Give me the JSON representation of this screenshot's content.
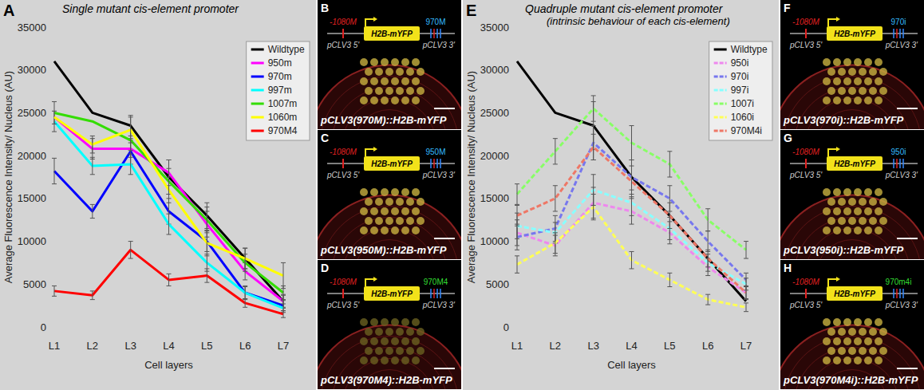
{
  "chart_data": [
    {
      "type": "line",
      "panel_label": "A",
      "title": "Single mutant cis-element promoter",
      "categories": [
        "L1",
        "L2",
        "L3",
        "L4",
        "L5",
        "L6",
        "L7"
      ],
      "x_label": "Cell layers",
      "y_label": "Average Fluorescence Intensity/ Nucleus (AU)",
      "ylim": [
        0,
        35000
      ],
      "yticks": [
        0,
        5000,
        10000,
        15000,
        20000,
        25000,
        30000,
        35000
      ],
      "legend": "upper right",
      "series": [
        {
          "name": "Wildtype",
          "color": "#000000",
          "line_style": "solid",
          "values": [
            31000,
            25000,
            23500,
            17500,
            13000,
            8000,
            3000
          ],
          "errors": [
            null,
            null,
            1200,
            2000,
            1500,
            1200,
            800
          ]
        },
        {
          "name": "950m",
          "color": "#ff00ff",
          "line_style": "solid",
          "values": [
            24500,
            20800,
            20800,
            18000,
            12000,
            6500,
            3000
          ],
          "errors": [
            null,
            1200,
            1000,
            1500,
            1500,
            1000,
            700
          ]
        },
        {
          "name": "970m",
          "color": "#0000ff",
          "line_style": "solid",
          "values": [
            18200,
            13500,
            20500,
            13500,
            10000,
            4000,
            2500
          ],
          "errors": [
            1500,
            800,
            1500,
            1500,
            1200,
            800,
            600
          ]
        },
        {
          "name": "997m",
          "color": "#00ffff",
          "line_style": "solid",
          "values": [
            24000,
            18800,
            19000,
            12000,
            7500,
            4000,
            2200
          ],
          "errors": [
            1200,
            1000,
            1200,
            1200,
            1000,
            700,
            500
          ]
        },
        {
          "name": "1007m",
          "color": "#33dd00",
          "line_style": "solid",
          "values": [
            25000,
            24000,
            21800,
            17000,
            12500,
            7500,
            4000
          ],
          "errors": [
            1300,
            null,
            1200,
            1500,
            1500,
            1000,
            800
          ]
        },
        {
          "name": "1060m",
          "color": "#ffff00",
          "line_style": "solid",
          "values": [
            24500,
            21300,
            23000,
            16000,
            9800,
            8000,
            6000
          ],
          "errors": [
            null,
            1000,
            1500,
            1500,
            1500,
            1200,
            1500
          ]
        },
        {
          "name": "970M4",
          "color": "#ff0000",
          "line_style": "solid",
          "values": [
            4200,
            3700,
            9000,
            5500,
            6000,
            2800,
            1500
          ],
          "errors": [
            600,
            500,
            1000,
            700,
            800,
            500,
            400
          ]
        }
      ]
    },
    {
      "type": "line",
      "panel_label": "E",
      "title": "Quadruple mutant cis-element promoter",
      "subtitle": "(intrinsic behaviour of each cis-element)",
      "categories": [
        "L1",
        "L2",
        "L3",
        "L4",
        "L5",
        "L6",
        "L7"
      ],
      "x_label": "Cell layers",
      "y_label": "Average Fluorescence Intensity/ Nucleus (AU)",
      "ylim": [
        0,
        35000
      ],
      "yticks": [
        0,
        5000,
        10000,
        15000,
        20000,
        25000,
        30000,
        35000
      ],
      "legend": "upper right",
      "series": [
        {
          "name": "Wildtype",
          "color": "#000000",
          "line_style": "solid",
          "values": [
            31000,
            25000,
            23500,
            17500,
            13000,
            8000,
            3000
          ],
          "errors": [
            null,
            null,
            2800,
            null,
            null,
            null,
            null
          ]
        },
        {
          "name": "950i",
          "color": "#ee88ee",
          "line_style": "dashed",
          "values": [
            11000,
            9500,
            14500,
            13500,
            11000,
            7000,
            4000
          ],
          "errors": [
            1500,
            1200,
            1800,
            1500,
            1300,
            1000,
            700
          ]
        },
        {
          "name": "970i",
          "color": "#7777ee",
          "line_style": "dashed",
          "values": [
            10500,
            11500,
            21500,
            17500,
            15000,
            10000,
            5500
          ],
          "errors": [
            1500,
            1500,
            2000,
            2000,
            1500,
            1200,
            800
          ]
        },
        {
          "name": "997i",
          "color": "#88ffff",
          "line_style": "dashed",
          "values": [
            11800,
            11000,
            16000,
            14500,
            11500,
            7500,
            5000
          ],
          "errors": [
            1500,
            1200,
            1800,
            1500,
            1300,
            1000,
            700
          ]
        },
        {
          "name": "1007i",
          "color": "#88ff66",
          "line_style": "dashed",
          "values": [
            15500,
            20500,
            25500,
            21500,
            19000,
            12500,
            9000
          ],
          "errors": [
            1200,
            1500,
            1500,
            2000,
            1500,
            1300,
            1000
          ]
        },
        {
          "name": "1060i",
          "color": "#ffff55",
          "line_style": "dashed",
          "values": [
            7300,
            9800,
            14000,
            7800,
            5500,
            3200,
            2300
          ],
          "errors": [
            1000,
            1200,
            1500,
            1000,
            800,
            600,
            500
          ]
        },
        {
          "name": "970M4i",
          "color": "#ee7766",
          "line_style": "dashed",
          "values": [
            13000,
            15000,
            21000,
            17000,
            13000,
            8000,
            4000
          ],
          "errors": [
            1200,
            1500,
            1500,
            1800,
            1500,
            1000,
            800
          ]
        }
      ]
    }
  ],
  "panels": [
    {
      "label": "B",
      "mutation_5": "-1080M",
      "reporter": "H2B-mYFP",
      "mutation_3": "970M",
      "color": "#33bbff",
      "promoter_5": "pCLV3 5'",
      "promoter_3": "pCLV3 3'",
      "caption": "pCLV3(970M)::H2B-mYFP"
    },
    {
      "label": "C",
      "mutation_5": "-1080M",
      "reporter": "H2B-mYFP",
      "mutation_3": "950M",
      "color": "#33bbff",
      "promoter_5": "pCLV3 5'",
      "promoter_3": "pCLV3 3'",
      "caption": "pCLV3(950M)::H2B-mYFP"
    },
    {
      "label": "D",
      "mutation_5": "-1080M",
      "reporter": "H2B-mYFP",
      "mutation_3": "970M4",
      "color": "#33dd33",
      "promoter_5": "pCLV3 5'",
      "promoter_3": "pCLV3 3'",
      "caption": "pCLV3(970M4)::H2B-mYFP"
    },
    {
      "label": "F",
      "mutation_5": "-1080M",
      "reporter": "H2B-mYFP",
      "mutation_3": "970i",
      "color": "#33bbff",
      "promoter_5": "pCLV3 5'",
      "promoter_3": "pCLV3 3'",
      "caption": "pCLV3(970i)::H2B-mYFP"
    },
    {
      "label": "G",
      "mutation_5": "-1080M",
      "reporter": "H2B-mYFP",
      "mutation_3": "950i",
      "color": "#33bbff",
      "promoter_5": "pCLV3 5'",
      "promoter_3": "pCLV3 3'",
      "caption": "pCLV3(950i)::H2B-mYFP"
    },
    {
      "label": "H",
      "mutation_5": "-1080M",
      "reporter": "H2B-mYFP",
      "mutation_3": "970m4i",
      "color": "#33dd33",
      "promoter_5": "pCLV3 5'",
      "promoter_3": "pCLV3 3'",
      "caption": "pCLV3(970M4i)::H2B-mYFP"
    }
  ]
}
